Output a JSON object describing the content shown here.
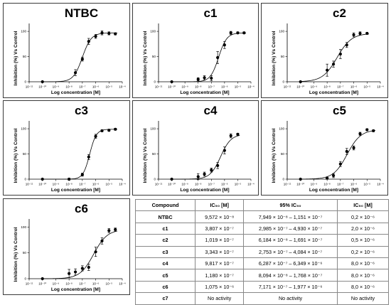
{
  "x_tick_labels": [
    "10⁻¹¹",
    "10⁻¹⁰",
    "10⁻⁹",
    "10⁻⁸",
    "10⁻⁷",
    "10⁻⁶",
    "10⁻⁵",
    "10⁻⁴"
  ],
  "y_tick_labels": [
    "0",
    "50",
    "100"
  ],
  "colors": {
    "line": "#000000",
    "frame": "#3a3a3a"
  },
  "chart_data": [
    {
      "type": "scatter",
      "title": "NTBC",
      "xlabel": "Log concentration [M]",
      "ylabel": "Inhibition (%) Vs Control",
      "x_scale": "log",
      "xlim": [
        1e-11,
        0.0001
      ],
      "ylim": [
        0,
        110
      ],
      "grid": false,
      "points": [
        [
          1e-10,
          0,
          0
        ],
        [
          3e-08,
          18,
          6
        ],
        [
          1e-07,
          45,
          4
        ],
        [
          3e-07,
          80,
          6
        ],
        [
          1e-06,
          90,
          4
        ],
        [
          3e-06,
          97,
          4
        ],
        [
          1e-05,
          96,
          3
        ],
        [
          3e-05,
          95,
          2
        ]
      ]
    },
    {
      "type": "scatter",
      "title": "c1",
      "xlabel": "Log concentration [M]",
      "ylabel": "Inhibition (%) Vs Control",
      "x_scale": "log",
      "xlim": [
        1e-11,
        0.0001
      ],
      "ylim": [
        0,
        110
      ],
      "grid": false,
      "points": [
        [
          1e-10,
          0,
          0
        ],
        [
          1e-08,
          5,
          3
        ],
        [
          3e-08,
          8,
          4
        ],
        [
          1e-07,
          7,
          5
        ],
        [
          3e-07,
          48,
          12
        ],
        [
          1e-06,
          73,
          7
        ],
        [
          3e-06,
          97,
          3
        ],
        [
          1e-05,
          97,
          2
        ],
        [
          3e-05,
          97,
          2
        ]
      ]
    },
    {
      "type": "scatter",
      "title": "c2",
      "xlabel": "Log concentration [M]",
      "ylabel": "Inhibition (%) Vs Control",
      "x_scale": "log",
      "xlim": [
        1e-11,
        0.0001
      ],
      "ylim": [
        0,
        110
      ],
      "grid": false,
      "points": [
        [
          1e-10,
          0,
          0
        ],
        [
          1e-08,
          23,
          12
        ],
        [
          3e-08,
          35,
          6
        ],
        [
          1e-07,
          55,
          9
        ],
        [
          3e-07,
          73,
          5
        ],
        [
          1e-06,
          93,
          4
        ],
        [
          3e-06,
          96,
          3
        ],
        [
          1e-05,
          96,
          2
        ]
      ]
    },
    {
      "type": "scatter",
      "title": "c3",
      "xlabel": "Log concentration [M]",
      "ylabel": "Inhibition (%) Vs Control",
      "x_scale": "log",
      "xlim": [
        1e-11,
        0.0001
      ],
      "ylim": [
        0,
        110
      ],
      "grid": false,
      "points": [
        [
          1e-10,
          0,
          0
        ],
        [
          1e-08,
          0,
          2
        ],
        [
          1e-07,
          9,
          3
        ],
        [
          3e-07,
          44,
          5
        ],
        [
          1e-06,
          85,
          4
        ],
        [
          3e-06,
          96,
          2
        ],
        [
          1e-05,
          97,
          2
        ],
        [
          3e-05,
          99,
          2
        ]
      ]
    },
    {
      "type": "scatter",
      "title": "c4",
      "xlabel": "Log concentration [M]",
      "ylabel": "Inhibition (%) Vs Control",
      "x_scale": "log",
      "xlim": [
        1e-11,
        0.0001
      ],
      "ylim": [
        0,
        110
      ],
      "grid": false,
      "points": [
        [
          1e-10,
          0,
          0
        ],
        [
          1e-08,
          5,
          6
        ],
        [
          3e-08,
          10,
          4
        ],
        [
          1e-07,
          18,
          4
        ],
        [
          3e-07,
          27,
          6
        ],
        [
          1e-06,
          57,
          7
        ],
        [
          3e-06,
          86,
          4
        ],
        [
          1e-05,
          89,
          2
        ]
      ]
    },
    {
      "type": "scatter",
      "title": "c5",
      "xlabel": "Log concentration [M]",
      "ylabel": "Inhibition (%) Vs Control",
      "x_scale": "log",
      "xlim": [
        1e-11,
        0.0001
      ],
      "ylim": [
        0,
        110
      ],
      "grid": false,
      "points": [
        [
          1e-10,
          0,
          0
        ],
        [
          1e-08,
          2,
          2
        ],
        [
          3e-08,
          7,
          4
        ],
        [
          1e-07,
          30,
          5
        ],
        [
          3e-07,
          55,
          6
        ],
        [
          1e-06,
          62,
          4
        ],
        [
          3e-06,
          90,
          3
        ],
        [
          1e-05,
          98,
          2
        ],
        [
          3e-05,
          96,
          2
        ]
      ]
    },
    {
      "type": "scatter",
      "title": "c6",
      "xlabel": "Log concentration [M]",
      "ylabel": "Inhibition (%) Vs Control",
      "x_scale": "log",
      "xlim": [
        1e-11,
        0.0001
      ],
      "ylim": [
        0,
        110
      ],
      "grid": false,
      "points": [
        [
          1e-10,
          0,
          0
        ],
        [
          1e-08,
          10,
          8
        ],
        [
          3e-08,
          13,
          6
        ],
        [
          1e-07,
          20,
          5
        ],
        [
          3e-07,
          22,
          6
        ],
        [
          1e-06,
          52,
          9
        ],
        [
          3e-06,
          73,
          6
        ],
        [
          1e-05,
          93,
          4
        ],
        [
          3e-05,
          95,
          3
        ]
      ]
    }
  ],
  "table": {
    "headers": [
      "Compound",
      "IC₅₀ [M]",
      "95% IC₅₀",
      "IC₅₀ [M]"
    ],
    "rows": [
      [
        "NTBC",
        "9,572 × 10⁻⁸",
        "7,949 × 10⁻⁸ – 1,151 × 10⁻⁷",
        "0,2 × 10⁻⁶"
      ],
      [
        "c1",
        "3,807 × 10⁻⁷",
        "2,985 × 10⁻⁷ – 4,930 × 10⁻⁷",
        "2,0 × 10⁻⁶"
      ],
      [
        "c2",
        "1,019 × 10⁻⁷",
        "6,184 × 10⁻⁸ – 1,691 × 10⁻⁷",
        "0,5 × 10⁻⁶"
      ],
      [
        "c3",
        "3,343 × 10⁻⁷",
        "2,753 × 10⁻⁷ – 4,084 × 10⁻⁷",
        "0,2 × 10⁻⁶"
      ],
      [
        "c4",
        "9,817 × 10⁻⁷",
        "6,287 × 10⁻⁷ – 6,349 × 10⁻⁶",
        "8,0 × 10⁻⁶"
      ],
      [
        "c5",
        "1,180 × 10⁻⁷",
        "8,094 × 10⁻⁸ – 1,768 × 10⁻⁷",
        "8,0 × 10⁻⁶"
      ],
      [
        "c6",
        "1,075 × 10⁻⁶",
        "7,171 × 10⁻⁷ – 1,977 × 10⁻⁶",
        "8,0 × 10⁻⁶"
      ],
      [
        "c7",
        "No activity",
        "No activity",
        "No activity"
      ]
    ]
  }
}
